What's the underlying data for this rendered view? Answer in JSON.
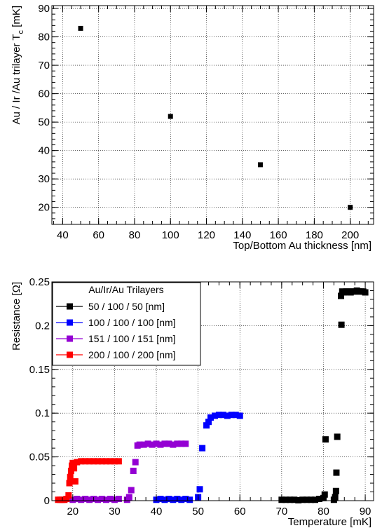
{
  "chart_data": [
    {
      "type": "scatter",
      "title": "",
      "xlabel": "Top/Bottom Au thickness [nm]",
      "ylabel": "Au / Ir /Au trilayer T",
      "ylabel_sub": "c",
      "ylabel_unit": " [mK]",
      "xlim": [
        34,
        213
      ],
      "ylim": [
        14,
        91
      ],
      "x_ticks": [
        40,
        60,
        80,
        100,
        120,
        140,
        160,
        180,
        200
      ],
      "y_ticks": [
        20,
        30,
        40,
        50,
        60,
        70,
        80,
        90
      ],
      "grid": true,
      "series": [
        {
          "name": "",
          "color": "#000000",
          "marker": "square",
          "points": [
            [
              50,
              83
            ],
            [
              100,
              52
            ],
            [
              150,
              35
            ],
            [
              200,
              20
            ]
          ]
        }
      ]
    },
    {
      "type": "scatter",
      "title": "",
      "xlabel": "Temperature [mK]",
      "ylabel": "Resistance [Ω]",
      "xlim": [
        15,
        92
      ],
      "ylim": [
        0,
        0.25
      ],
      "x_ticks": [
        20,
        30,
        40,
        50,
        60,
        70,
        80,
        90
      ],
      "y_ticks": [
        0,
        0.05,
        0.1,
        0.15,
        0.2,
        0.25
      ],
      "y_tick_labels": [
        "0",
        "0.05",
        "0.1",
        "0.15",
        "0.2",
        "0.25"
      ],
      "grid": true,
      "legend_title": "Au/Ir/Au Trilayers",
      "legend_position": "top-left",
      "series": [
        {
          "name": "50 / 100 / 50 [nm]",
          "color": "#000000",
          "points": [
            [
              70,
              0.001
            ],
            [
              71,
              0.001
            ],
            [
              72,
              0.001
            ],
            [
              73,
              0.001
            ],
            [
              74,
              0.0005
            ],
            [
              75,
              0.001
            ],
            [
              76,
              0.001
            ],
            [
              77,
              0.001
            ],
            [
              78,
              0.001
            ],
            [
              79,
              0.002
            ],
            [
              80,
              0.003
            ],
            [
              80.3,
              0.007
            ],
            [
              80.5,
              0.07
            ],
            [
              82.5,
              0.001
            ],
            [
              82.8,
              0.004
            ],
            [
              83,
              0.011
            ],
            [
              83.1,
              0.032
            ],
            [
              83.3,
              0.073
            ],
            [
              84.3,
              0.201
            ],
            [
              84.2,
              0.234
            ],
            [
              84.5,
              0.239
            ],
            [
              85,
              0.238
            ],
            [
              85.5,
              0.239
            ],
            [
              86,
              0.239
            ],
            [
              86.5,
              0.238
            ],
            [
              87,
              0.239
            ],
            [
              87.5,
              0.239
            ],
            [
              88,
              0.24
            ],
            [
              88.5,
              0.239
            ],
            [
              89,
              0.239
            ],
            [
              89.5,
              0.239
            ],
            [
              90,
              0.238
            ]
          ]
        },
        {
          "name": "100 / 100 / 100 [nm]",
          "color": "#0000ff",
          "points": [
            [
              40,
              0.001
            ],
            [
              41,
              0.002
            ],
            [
              42,
              0.001
            ],
            [
              43,
              0.002
            ],
            [
              44,
              0.001
            ],
            [
              45,
              0.002
            ],
            [
              46,
              0.001
            ],
            [
              47,
              0.002
            ],
            [
              48,
              0.001
            ],
            [
              50,
              0.004
            ],
            [
              50.4,
              0.013
            ],
            [
              51,
              0.06
            ],
            [
              52,
              0.086
            ],
            [
              52.5,
              0.09
            ],
            [
              53,
              0.095
            ],
            [
              54,
              0.097
            ],
            [
              55,
              0.098
            ],
            [
              56,
              0.098
            ],
            [
              57,
              0.097
            ],
            [
              58,
              0.098
            ],
            [
              59,
              0.098
            ],
            [
              60,
              0.097
            ]
          ]
        },
        {
          "name": "151 / 100 / 151 [nm]",
          "color": "#9400d3",
          "points": [
            [
              20,
              0.001
            ],
            [
              21,
              0.002
            ],
            [
              22,
              0.001
            ],
            [
              23,
              0.002
            ],
            [
              24,
              0.001
            ],
            [
              25,
              0.002
            ],
            [
              26,
              0.001
            ],
            [
              27,
              0.002
            ],
            [
              28,
              0.001
            ],
            [
              29,
              0.002
            ],
            [
              30,
              0.001
            ],
            [
              31,
              0.002
            ],
            [
              33,
              0.001
            ],
            [
              33.5,
              0.004
            ],
            [
              34,
              0.012
            ],
            [
              34.5,
              0.034
            ],
            [
              35,
              0.044
            ],
            [
              35.5,
              0.063
            ],
            [
              36,
              0.064
            ],
            [
              37,
              0.064
            ],
            [
              38,
              0.065
            ],
            [
              39,
              0.064
            ],
            [
              40,
              0.065
            ],
            [
              41,
              0.064
            ],
            [
              42,
              0.065
            ],
            [
              43,
              0.065
            ],
            [
              44,
              0.064
            ],
            [
              45,
              0.065
            ],
            [
              46,
              0.065
            ],
            [
              47,
              0.065
            ]
          ]
        },
        {
          "name": "200 / 100 / 200 [nm]",
          "color": "#ff0000",
          "points": [
            [
              16.5,
              0.001
            ],
            [
              17,
              0.001
            ],
            [
              17.5,
              0.001
            ],
            [
              18,
              0.001
            ],
            [
              18.5,
              0.002
            ],
            [
              19,
              0.006
            ],
            [
              19.2,
              0.02
            ],
            [
              19.4,
              0.027
            ],
            [
              19.6,
              0.034
            ],
            [
              19.8,
              0.04
            ],
            [
              20,
              0.043
            ],
            [
              20.3,
              0.037
            ],
            [
              20.6,
              0.022
            ],
            [
              21,
              0.044
            ],
            [
              22,
              0.045
            ],
            [
              23,
              0.045
            ],
            [
              24,
              0.045
            ],
            [
              25,
              0.045
            ],
            [
              26,
              0.045
            ],
            [
              27,
              0.045
            ],
            [
              28,
              0.045
            ],
            [
              29,
              0.045
            ],
            [
              30,
              0.045
            ],
            [
              31,
              0.045
            ]
          ]
        }
      ]
    }
  ]
}
